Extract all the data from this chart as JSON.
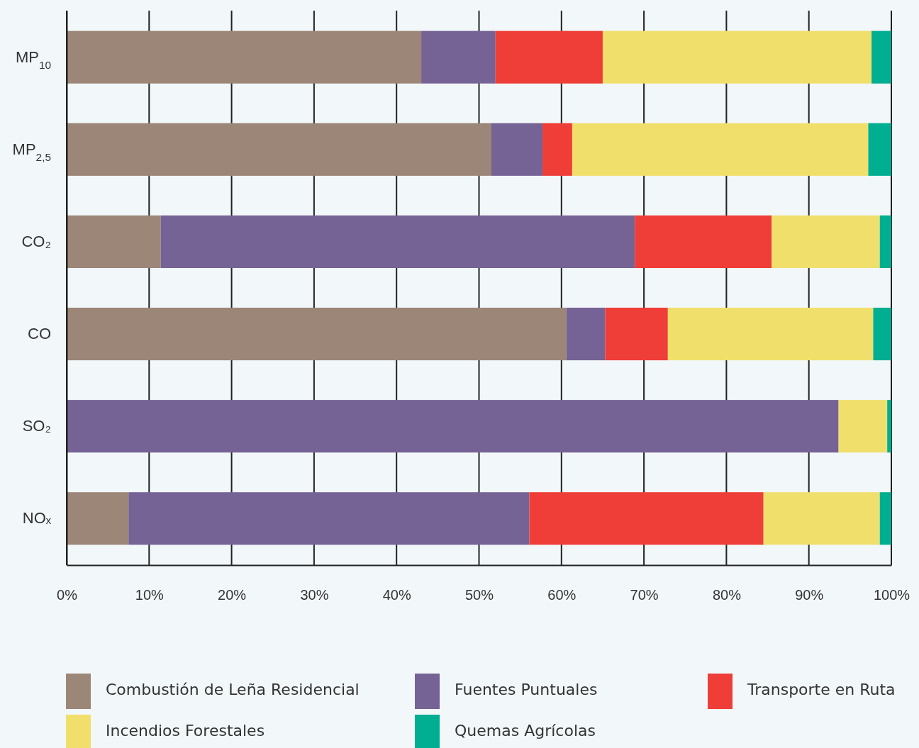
{
  "chart_data": {
    "type": "bar",
    "orientation": "horizontal",
    "stacked": true,
    "categories": [
      "MP$_{10}$",
      "MP$_{2,5}$",
      "CO₂",
      "CO",
      "SO₂",
      "NOₓ"
    ],
    "series": [
      {
        "name": "Combustión de Leña Residencial",
        "color": "#9c8677",
        "values": [
          43,
          51.5,
          11.4,
          60.6,
          0,
          7.5
        ]
      },
      {
        "name": "Fuentes Puntuales",
        "color": "#766396",
        "values": [
          9,
          6.2,
          57.5,
          4.7,
          93.6,
          48.6
        ]
      },
      {
        "name": "Transporte en Ruta",
        "color": "#ee3e37",
        "values": [
          13,
          3.6,
          16.6,
          7.6,
          0,
          28.4
        ]
      },
      {
        "name": "Incendios Forestales",
        "color": "#f1df6c",
        "values": [
          32.6,
          35.9,
          13.1,
          24.9,
          5.9,
          14.1
        ]
      },
      {
        "name": "Quemas Agrícolas",
        "color": "#00ae91",
        "values": [
          2.4,
          2.8,
          1.4,
          2.2,
          0.5,
          1.4
        ]
      }
    ],
    "xlim": [
      0,
      100
    ],
    "xticks": [
      {
        "value": 0,
        "label": "0%"
      },
      {
        "value": 10,
        "label": "10%"
      },
      {
        "value": 20,
        "label": "20%"
      },
      {
        "value": 30,
        "label": "30%"
      },
      {
        "value": 40,
        "label": "40%"
      },
      {
        "value": 50,
        "label": "50%"
      },
      {
        "value": 60,
        "label": "60%"
      },
      {
        "value": 70,
        "label": "70%"
      },
      {
        "value": 80,
        "label": "80%"
      },
      {
        "value": 90,
        "label": "90%"
      },
      {
        "value": 100,
        "label": "100%"
      }
    ],
    "grid": "x",
    "legend": "bottom"
  }
}
